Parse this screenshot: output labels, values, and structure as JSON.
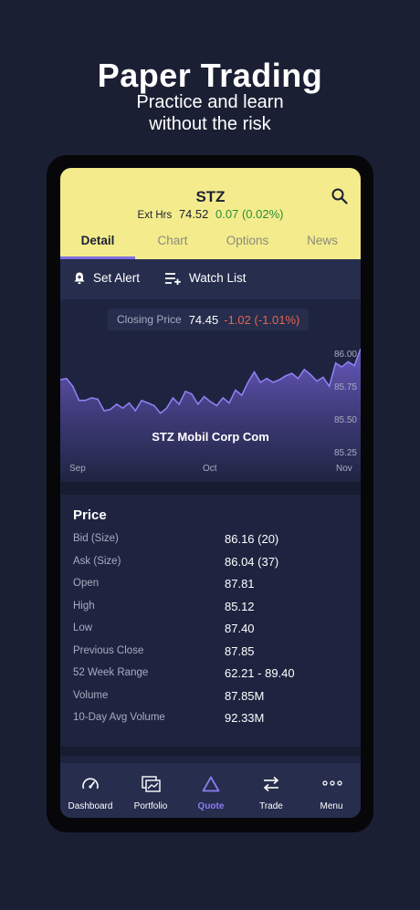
{
  "promo": {
    "title": "Paper Trading",
    "subtitle_line1": "Practice and learn",
    "subtitle_line2": "without the risk"
  },
  "quote": {
    "symbol": "STZ",
    "ext_label": "Ext Hrs",
    "ext_price": "74.52",
    "ext_change": "0.07 (0.02%)"
  },
  "tabs": [
    "Detail",
    "Chart",
    "Options",
    "News"
  ],
  "actions": {
    "set_alert": "Set Alert",
    "watch_list": "Watch List"
  },
  "closing": {
    "label": "Closing Price",
    "value": "74.45",
    "change": "-1.02 (-1.01%)"
  },
  "chart_data": {
    "type": "area",
    "title": "STZ Mobil Corp Com",
    "x_ticks": [
      "Sep",
      "Oct",
      "Nov"
    ],
    "y_ticks": [
      "86.00",
      "85.75",
      "85.50",
      "85.25"
    ],
    "ylim": [
      85.2,
      86.05
    ],
    "values": [
      85.78,
      85.79,
      85.73,
      85.62,
      85.62,
      85.64,
      85.63,
      85.54,
      85.55,
      85.59,
      85.56,
      85.6,
      85.54,
      85.62,
      85.6,
      85.58,
      85.52,
      85.56,
      85.64,
      85.59,
      85.69,
      85.67,
      85.59,
      85.65,
      85.61,
      85.58,
      85.64,
      85.6,
      85.7,
      85.66,
      85.76,
      85.84,
      85.76,
      85.79,
      85.76,
      85.78,
      85.81,
      85.83,
      85.79,
      85.86,
      85.82,
      85.77,
      85.8,
      85.73,
      85.91,
      85.88,
      85.92,
      85.89,
      86.02
    ]
  },
  "price": {
    "title": "Price",
    "rows": [
      {
        "label": "Bid (Size)",
        "value": "86.16 (20)"
      },
      {
        "label": "Ask (Size)",
        "value": "86.04 (37)"
      },
      {
        "label": "Open",
        "value": "87.81"
      },
      {
        "label": "High",
        "value": "85.12"
      },
      {
        "label": "Low",
        "value": "87.40"
      },
      {
        "label": "Previous Close",
        "value": "87.85"
      },
      {
        "label": "52 Week Range",
        "value": "62.21 - 89.40"
      },
      {
        "label": "Volume",
        "value": "87.85M"
      },
      {
        "label": "10-Day Avg Volume",
        "value": "92.33M"
      }
    ]
  },
  "nav": [
    {
      "label": "Dashboard",
      "icon": "gauge-icon"
    },
    {
      "label": "Portfolio",
      "icon": "portfolio-icon"
    },
    {
      "label": "Quote",
      "icon": "triangle-icon"
    },
    {
      "label": "Trade",
      "icon": "swap-arrows-icon"
    },
    {
      "label": "Menu",
      "icon": "more-dots-icon"
    }
  ],
  "colors": {
    "background": "#1b1f33",
    "header": "#f4ec8c",
    "accent": "#7e6fe0",
    "positive": "#2c8c3a",
    "negative": "#e5664e"
  }
}
